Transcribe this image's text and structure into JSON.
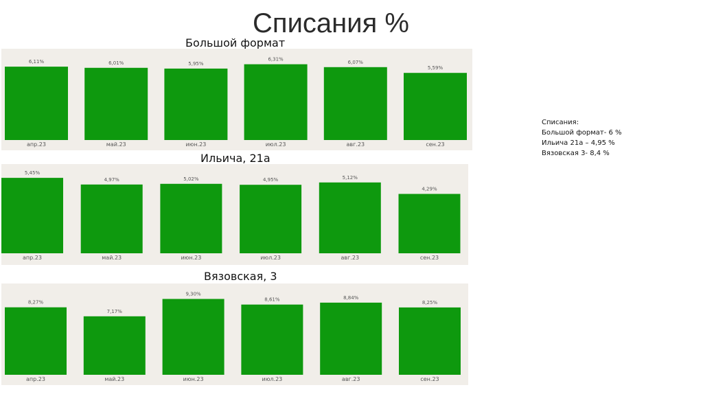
{
  "page": {
    "title": "Списания %"
  },
  "notes": {
    "heading": "Списания:",
    "lines": [
      "Большой формат- 6 %",
      "Ильича 21а – 4,95 %",
      "Вязовская 3- 8,4 %"
    ]
  },
  "colors": {
    "bar": "#0e990e",
    "panel": "#f1eee9",
    "label": "#555555"
  },
  "chart_data": [
    {
      "type": "bar",
      "title": "Большой формат",
      "categories": [
        "апр.23",
        "май.23",
        "июн.23",
        "июл.23",
        "авг.23",
        "сен.23"
      ],
      "values": [
        6.11,
        6.01,
        5.95,
        6.31,
        6.07,
        5.59
      ],
      "data_labels": [
        "6,11%",
        "6,01%",
        "5,95%",
        "6,31%",
        "6,07%",
        "5,59%"
      ],
      "ylim": [
        0,
        7.2
      ],
      "grid": false,
      "legend": "none"
    },
    {
      "type": "bar",
      "title": "Ильича, 21а",
      "categories": [
        "апр.23",
        "май.23",
        "июн.23",
        "июл.23",
        "авг.23",
        "сен.23"
      ],
      "values": [
        5.45,
        4.97,
        5.02,
        4.95,
        5.12,
        4.29
      ],
      "data_labels": [
        "5,45%",
        "4,97%",
        "5,02%",
        "4,95%",
        "5,12%",
        "4,29%"
      ],
      "ylim": [
        0,
        6.1
      ],
      "grid": false,
      "legend": "none"
    },
    {
      "type": "bar",
      "title": "Вязовская, 3",
      "categories": [
        "апр.23",
        "май.23",
        "июн.23",
        "июл.23",
        "авг.23",
        "сен.23"
      ],
      "values": [
        8.27,
        7.17,
        9.3,
        8.61,
        8.84,
        8.25
      ],
      "data_labels": [
        "8,27%",
        "7,17%",
        "9,30%",
        "8,61%",
        "8,84%",
        "8,25%"
      ],
      "ylim": [
        0,
        10.6
      ],
      "grid": false,
      "legend": "none"
    }
  ]
}
